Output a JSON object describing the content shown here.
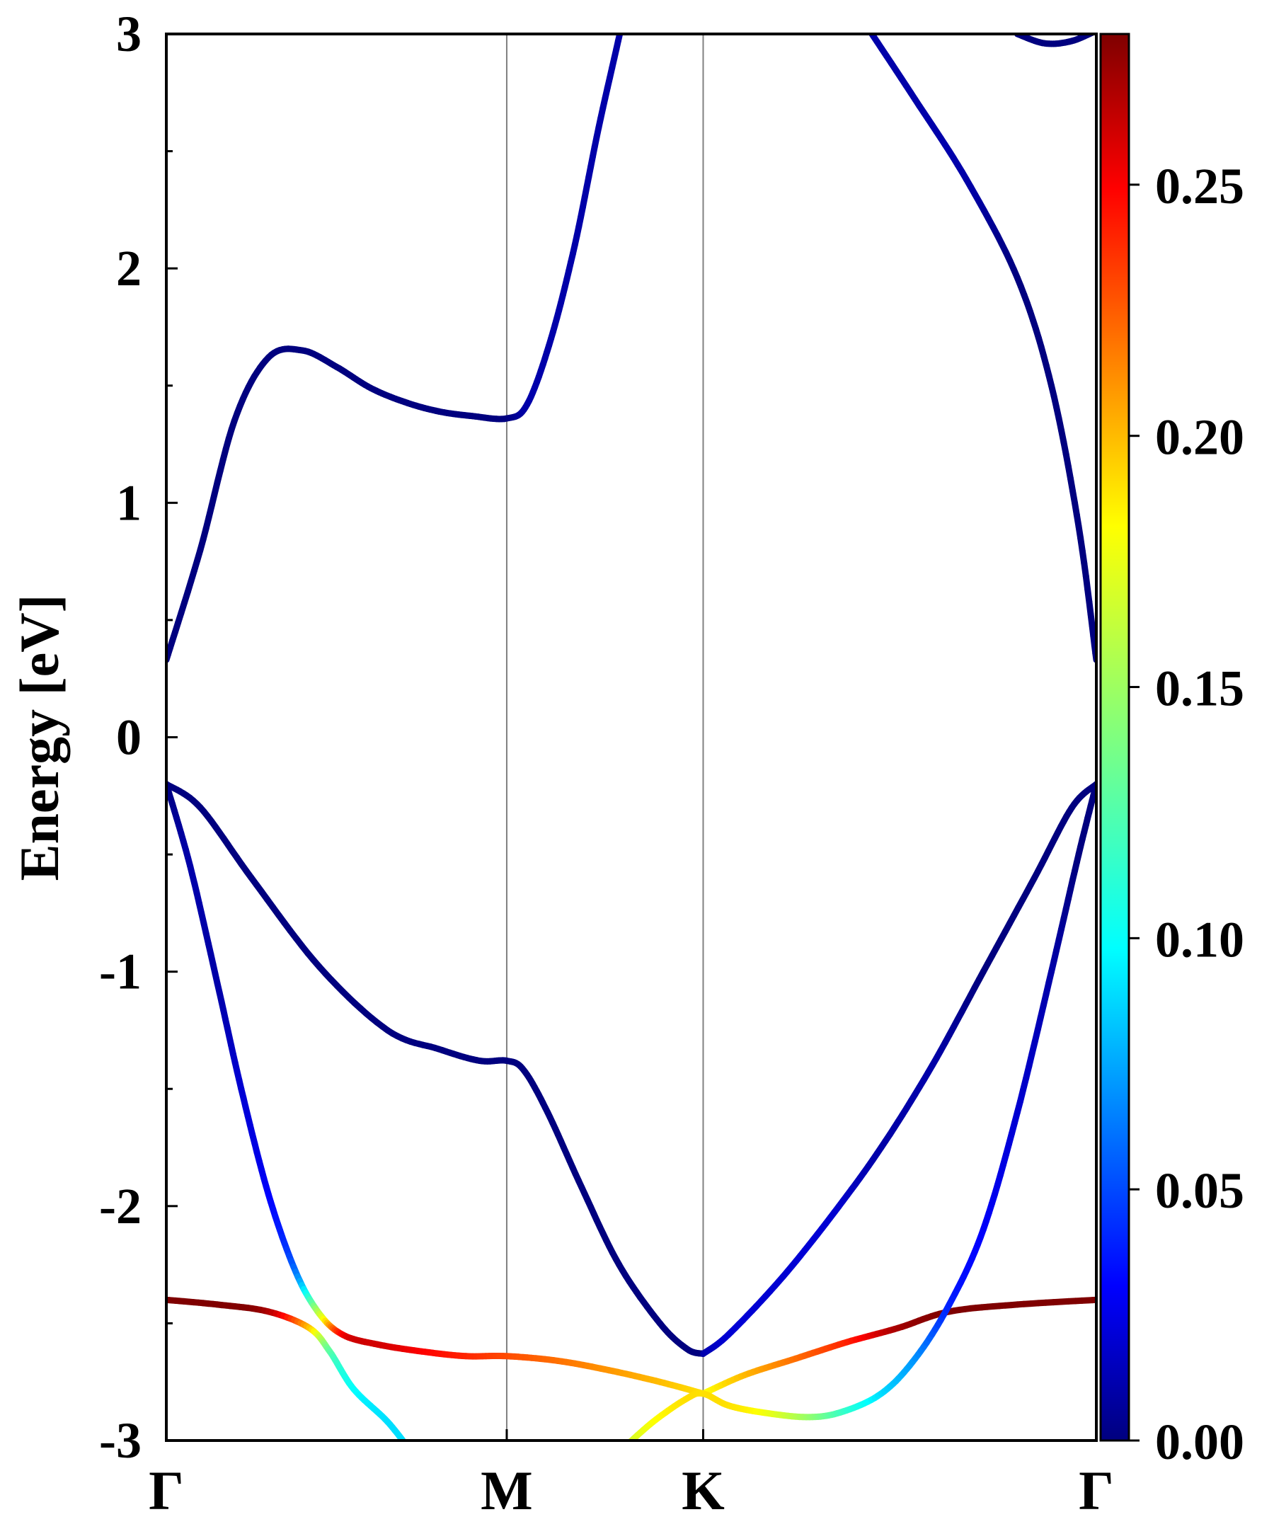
{
  "chart_data": {
    "type": "line",
    "title": "",
    "xlabel": "",
    "ylabel": "Energy [eV]",
    "ylim": [
      -3,
      3
    ],
    "y_ticks": [
      "3",
      "2",
      "1",
      "0",
      "-1",
      "-2",
      "-3"
    ],
    "y_tick_values": [
      3,
      2,
      1,
      0,
      -1,
      -2,
      -3
    ],
    "k_points": [
      {
        "label": "Γ",
        "x": 0.0
      },
      {
        "label": "M",
        "x": 1.0
      },
      {
        "label": "K",
        "x": 1.577
      },
      {
        "label": "Γ",
        "x": 2.732
      }
    ],
    "colorbar": {
      "colormap": "jet",
      "range": [
        0.0,
        0.28
      ],
      "ticks": [
        "0.00",
        "0.05",
        "0.10",
        "0.15",
        "0.20",
        "0.25"
      ],
      "tick_values": [
        0.0,
        0.05,
        0.1,
        0.15,
        0.2,
        0.25
      ]
    },
    "grid": false,
    "legend": "none",
    "series": [
      {
        "points": [
          [
            0.0,
            0.33,
            0.0
          ],
          [
            0.1,
            0.8,
            0.0
          ],
          [
            0.2,
            1.35,
            0.0
          ],
          [
            0.3,
            1.62,
            0.0
          ],
          [
            0.4,
            1.65,
            0.0
          ],
          [
            0.5,
            1.58,
            0.0
          ],
          [
            0.6,
            1.49,
            0.0
          ],
          [
            0.7,
            1.43,
            0.0
          ],
          [
            0.8,
            1.39,
            0.0
          ],
          [
            0.9,
            1.37,
            0.0
          ],
          [
            1.0,
            1.36,
            0.0
          ],
          [
            1.06,
            1.42,
            0.01
          ],
          [
            1.13,
            1.7,
            0.01
          ],
          [
            1.2,
            2.1,
            0.01
          ],
          [
            1.27,
            2.6,
            0.01
          ],
          [
            1.34,
            3.05,
            0.01
          ]
        ]
      },
      {
        "points": [
          [
            2.05,
            3.05,
            0.01
          ],
          [
            2.2,
            2.72,
            0.01
          ],
          [
            2.35,
            2.38,
            0.01
          ],
          [
            2.5,
            1.96,
            0.0
          ],
          [
            2.6,
            1.5,
            0.0
          ],
          [
            2.68,
            0.9,
            0.0
          ],
          [
            2.732,
            0.33,
            0.0
          ]
        ]
      },
      {
        "points": [
          [
            2.5,
            3.0,
            0.0
          ],
          [
            2.58,
            2.96,
            0.0
          ],
          [
            2.66,
            2.97,
            0.0
          ],
          [
            2.74,
            3.02,
            0.0
          ]
        ]
      },
      {
        "points": [
          [
            0.0,
            -0.2,
            0.0
          ],
          [
            0.1,
            -0.3,
            0.0
          ],
          [
            0.25,
            -0.6,
            0.0
          ],
          [
            0.45,
            -0.98,
            0.0
          ],
          [
            0.65,
            -1.25,
            0.0
          ],
          [
            0.8,
            -1.33,
            0.0
          ],
          [
            0.92,
            -1.38,
            0.0
          ],
          [
            1.0,
            -1.38,
            0.0
          ],
          [
            1.05,
            -1.42,
            0.0
          ],
          [
            1.12,
            -1.6,
            0.0
          ],
          [
            1.22,
            -1.92,
            0.0
          ],
          [
            1.33,
            -2.25,
            0.0
          ],
          [
            1.45,
            -2.5,
            0.0
          ],
          [
            1.53,
            -2.61,
            0.0
          ],
          [
            1.577,
            -2.63,
            0.0
          ]
        ]
      },
      {
        "points": [
          [
            1.577,
            -2.63,
            0.01
          ],
          [
            1.65,
            -2.55,
            0.02
          ],
          [
            1.8,
            -2.32,
            0.02
          ],
          [
            1.95,
            -2.05,
            0.02
          ],
          [
            2.1,
            -1.75,
            0.01
          ],
          [
            2.25,
            -1.4,
            0.01
          ],
          [
            2.4,
            -1.0,
            0.0
          ],
          [
            2.55,
            -0.6,
            0.0
          ],
          [
            2.66,
            -0.3,
            0.0
          ],
          [
            2.732,
            -0.2,
            0.0
          ]
        ]
      },
      {
        "points": [
          [
            0.0,
            -0.2,
            0.0
          ],
          [
            0.07,
            -0.55,
            0.01
          ],
          [
            0.15,
            -1.05,
            0.01
          ],
          [
            0.22,
            -1.5,
            0.02
          ],
          [
            0.3,
            -1.95,
            0.03
          ],
          [
            0.38,
            -2.28,
            0.06
          ],
          [
            0.45,
            -2.46,
            0.16
          ],
          [
            0.52,
            -2.55,
            0.25
          ],
          [
            0.62,
            -2.59,
            0.26
          ],
          [
            0.75,
            -2.62,
            0.25
          ],
          [
            0.88,
            -2.64,
            0.24
          ],
          [
            1.0,
            -2.64,
            0.23
          ],
          [
            1.15,
            -2.66,
            0.22
          ],
          [
            1.3,
            -2.7,
            0.21
          ],
          [
            1.45,
            -2.75,
            0.2
          ],
          [
            1.577,
            -2.8,
            0.19
          ]
        ]
      },
      {
        "points": [
          [
            1.577,
            -2.8,
            0.18
          ],
          [
            1.7,
            -2.72,
            0.2
          ],
          [
            1.85,
            -2.65,
            0.22
          ],
          [
            2.0,
            -2.58,
            0.24
          ],
          [
            2.15,
            -2.52,
            0.27
          ],
          [
            2.3,
            -2.45,
            0.28
          ],
          [
            2.5,
            -2.42,
            0.28
          ],
          [
            2.732,
            -2.4,
            0.28
          ]
        ]
      },
      {
        "points": [
          [
            0.0,
            -2.4,
            0.28
          ],
          [
            0.15,
            -2.42,
            0.28
          ],
          [
            0.3,
            -2.45,
            0.27
          ],
          [
            0.42,
            -2.52,
            0.2
          ],
          [
            0.48,
            -2.62,
            0.13
          ],
          [
            0.55,
            -2.78,
            0.1
          ],
          [
            0.65,
            -2.92,
            0.09
          ],
          [
            0.72,
            -3.05,
            0.09
          ]
        ]
      },
      {
        "points": [
          [
            1.33,
            -3.05,
            0.16
          ],
          [
            1.43,
            -2.92,
            0.18
          ],
          [
            1.53,
            -2.82,
            0.19
          ],
          [
            1.577,
            -2.8,
            0.19
          ],
          [
            1.65,
            -2.85,
            0.19
          ],
          [
            1.75,
            -2.88,
            0.18
          ],
          [
            1.88,
            -2.9,
            0.15
          ],
          [
            1.98,
            -2.88,
            0.12
          ],
          [
            2.1,
            -2.8,
            0.09
          ],
          [
            2.2,
            -2.65,
            0.07
          ],
          [
            2.3,
            -2.42,
            0.04
          ],
          [
            2.4,
            -2.1,
            0.03
          ],
          [
            2.5,
            -1.6,
            0.02
          ],
          [
            2.6,
            -1.0,
            0.01
          ],
          [
            2.68,
            -0.5,
            0.0
          ],
          [
            2.732,
            -0.2,
            0.0
          ]
        ]
      }
    ]
  }
}
